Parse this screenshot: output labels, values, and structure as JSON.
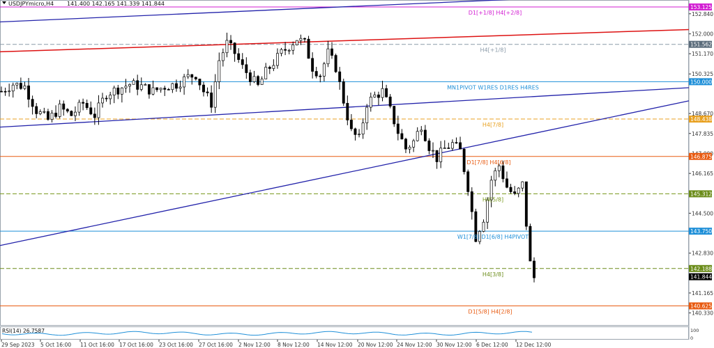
{
  "header": {
    "symbol": "USDJPYmicro,H4",
    "ohlc": "141.400 142.165 141.339 141.844"
  },
  "indicator": {
    "label": "RSI(14) 26.7587",
    "axis_max": "100",
    "axis_min": "0"
  },
  "price_axis": {
    "ticks": [
      152.84,
      152.0,
      151.17,
      150.325,
      148.67,
      147.835,
      147.0,
      146.165,
      144.5,
      142.83,
      141.165,
      140.33
    ],
    "tick_labels": [
      "152.840",
      "152.000",
      "151.170",
      "150.325",
      "148.670",
      "147.835",
      "147.000",
      "146.165",
      "144.500",
      "142.830",
      "141.165",
      "140.330"
    ]
  },
  "levels": [
    {
      "price": 153.125,
      "label": "D1[+1/8] H4[+2/8]",
      "tag": "153.125",
      "color": "#d21ed2",
      "tag_color": "#d21ed2",
      "style": "solid"
    },
    {
      "price": 151.562,
      "label": "H4[+1/8]",
      "tag": "151.562",
      "color": "#8a9aa8",
      "tag_color": "#5a6b7a",
      "style": "dashed"
    },
    {
      "price": 150.0,
      "label": "MN1PIVOT W1RES D1RES H4RES",
      "tag": "150.000",
      "color": "#1e8fd8",
      "tag_color": "#1e8fd8",
      "style": "solid"
    },
    {
      "price": 148.438,
      "label": "H4[7/8]",
      "tag": "148.438",
      "color": "#e8a020",
      "tag_color": "#e8a020",
      "style": "dashed"
    },
    {
      "price": 146.875,
      "label": "D1[7/8] H4[6/8]",
      "tag": "146.875",
      "color": "#e85a10",
      "tag_color": "#e85a10",
      "style": "solid"
    },
    {
      "price": 145.312,
      "label": "H4[5/8]",
      "tag": "145.312",
      "color": "#7a9a20",
      "tag_color": "#6b8c1a",
      "style": "dashed"
    },
    {
      "price": 143.75,
      "label": "W1[7/8] D1[6/8] H4PIVOT",
      "tag": "143.750",
      "color": "#1e8fd8",
      "tag_color": "#1e8fd8",
      "style": "solid"
    },
    {
      "price": 142.188,
      "label": "H4[3/8]",
      "tag": "142.188",
      "color": "#6b8c1a",
      "tag_color": "#6b8c1a",
      "style": "dashed"
    },
    {
      "price": 140.625,
      "label": "D1[5/8] H4[2/8]",
      "tag": "140.625",
      "color": "#e85a10",
      "tag_color": "#e85a10",
      "style": "solid"
    }
  ],
  "current_price": {
    "price": 141.844,
    "tag": "141.844",
    "tag_color": "#000000"
  },
  "time_axis": [
    "29 Sep 2023",
    "5 Oct 16:00",
    "11 Oct 16:00",
    "17 Oct 16:00",
    "23 Oct 16:00",
    "27 Oct 16:00",
    "2 Nov 12:00",
    "8 Nov 12:00",
    "14 Nov 12:00",
    "20 Nov 12:00",
    "24 Nov 12:00",
    "30 Nov 12:00",
    "6 Dec 12:00",
    "12 Dec 12:00"
  ],
  "chart_data": {
    "type": "candlestick",
    "y_range": [
      140.0,
      153.35
    ],
    "series_close_path": [
      [
        0,
        149.6
      ],
      [
        3,
        149.9
      ],
      [
        6,
        149.8
      ],
      [
        9,
        148.8
      ],
      [
        12,
        148.4
      ],
      [
        15,
        148.9
      ],
      [
        18,
        148.6
      ],
      [
        21,
        149.1
      ],
      [
        24,
        148.6
      ],
      [
        27,
        149.5
      ],
      [
        30,
        149.7
      ],
      [
        33,
        149.9
      ],
      [
        36,
        149.8
      ],
      [
        39,
        149.6
      ],
      [
        42,
        149.8
      ],
      [
        45,
        149.9
      ],
      [
        48,
        150.2
      ],
      [
        50,
        150.3
      ],
      [
        52,
        149.6
      ],
      [
        54,
        149.1
      ],
      [
        56,
        150.9
      ],
      [
        58,
        151.6
      ],
      [
        60,
        151.2
      ],
      [
        62,
        150.6
      ],
      [
        64,
        150.2
      ],
      [
        66,
        149.8
      ],
      [
        68,
        150.4
      ],
      [
        70,
        150.8
      ],
      [
        72,
        151.2
      ],
      [
        74,
        151.5
      ],
      [
        76,
        151.8
      ],
      [
        78,
        151.6
      ],
      [
        80,
        150.6
      ],
      [
        82,
        150.3
      ],
      [
        84,
        151.2
      ],
      [
        86,
        150.6
      ],
      [
        88,
        149.2
      ],
      [
        90,
        147.9
      ],
      [
        92,
        147.6
      ],
      [
        94,
        149.1
      ],
      [
        96,
        149.4
      ],
      [
        98,
        149.6
      ],
      [
        100,
        148.8
      ],
      [
        102,
        147.9
      ],
      [
        104,
        147.2
      ],
      [
        106,
        147.5
      ],
      [
        108,
        148.2
      ],
      [
        110,
        147.3
      ],
      [
        112,
        146.8
      ],
      [
        114,
        147.2
      ],
      [
        116,
        147.4
      ],
      [
        118,
        147.1
      ],
      [
        120,
        145.6
      ],
      [
        122,
        143.5
      ],
      [
        124,
        144.3
      ],
      [
        126,
        145.9
      ],
      [
        128,
        146.5
      ],
      [
        130,
        145.6
      ],
      [
        132,
        145.2
      ],
      [
        134,
        145.7
      ],
      [
        136,
        142.4
      ],
      [
        137,
        141.8
      ]
    ]
  }
}
